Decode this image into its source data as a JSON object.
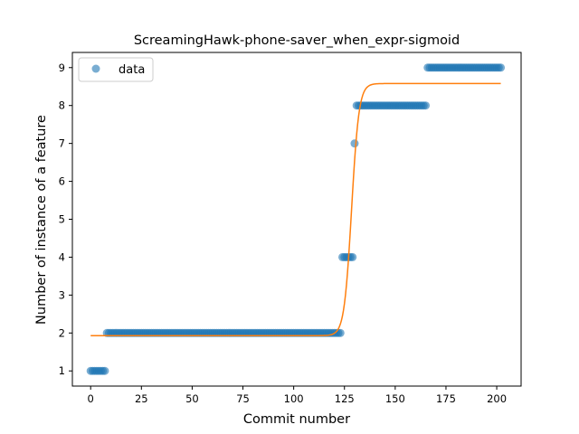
{
  "chart_data": {
    "type": "scatter",
    "title": "ScreamingHawk-phone-saver_when_expr-sigmoid",
    "xlabel": "Commit number",
    "ylabel": "Number of instance of a feature",
    "xlim": [
      -9,
      212
    ],
    "ylim": [
      0.6,
      9.4
    ],
    "xticks": [
      0,
      25,
      50,
      75,
      100,
      125,
      150,
      175,
      200
    ],
    "yticks": [
      1,
      2,
      3,
      4,
      5,
      6,
      7,
      8,
      9
    ],
    "grid": false,
    "legend": {
      "position": "top-left",
      "entries": [
        "data"
      ]
    },
    "series": [
      {
        "name": "data",
        "kind": "scatter",
        "color": "#1f77b4",
        "segments": [
          {
            "x_start": 0,
            "x_end": 7,
            "y": 1
          },
          {
            "x_start": 8,
            "x_end": 123,
            "y": 2
          },
          {
            "x_start": 124,
            "x_end": 129,
            "y": 4
          },
          {
            "x_start": 130,
            "x_end": 130,
            "y": 7
          },
          {
            "x_start": 131,
            "x_end": 165,
            "y": 8
          },
          {
            "x_start": 166,
            "x_end": 202,
            "y": 9
          }
        ]
      },
      {
        "kind": "line",
        "color": "#ff7f0e",
        "sigmoid": {
          "lower": 1.93,
          "upper": 8.58,
          "midpoint": 128.5,
          "steepness": 0.55
        },
        "x_range": [
          0,
          202
        ]
      }
    ]
  }
}
